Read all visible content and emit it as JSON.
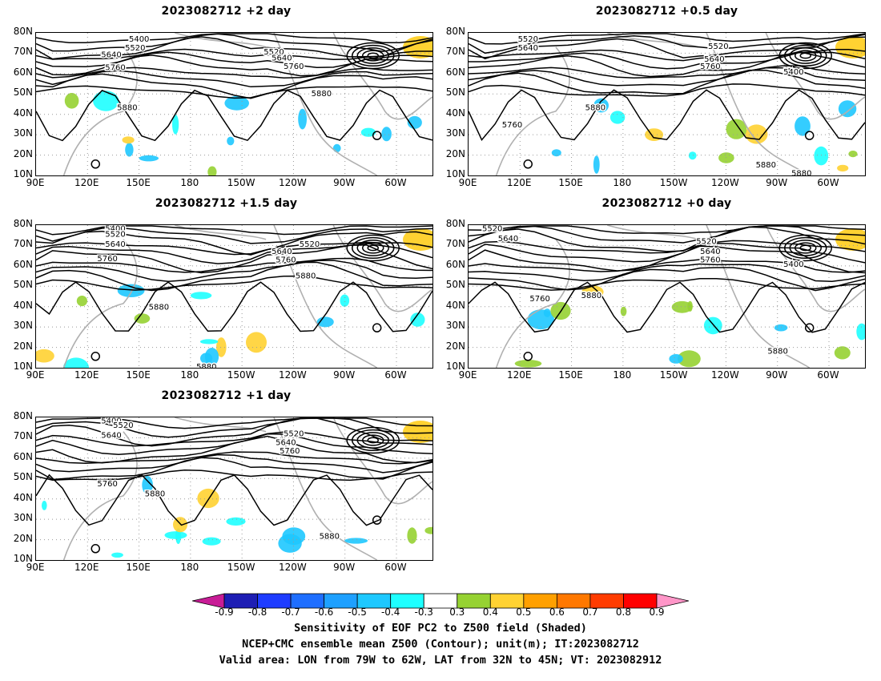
{
  "panels": [
    {
      "title": "2023082712 +2 day"
    },
    {
      "title": "2023082712 +0.5 day"
    },
    {
      "title": "2023082712 +1.5 day"
    },
    {
      "title": "2023082712 +0 day"
    },
    {
      "title": "2023082712 +1 day"
    }
  ],
  "lat_labels": [
    "80N",
    "70N",
    "60N",
    "50N",
    "40N",
    "30N",
    "20N",
    "10N"
  ],
  "lon_labels": [
    "90E",
    "120E",
    "150E",
    "180",
    "150W",
    "120W",
    "90W",
    "60W"
  ],
  "contour_labels": {
    "p0": [
      "5400",
      "5520",
      "5640",
      "5760",
      "5880",
      "5520",
      "5640",
      "5760",
      "5880"
    ],
    "p1": [
      "5520",
      "5640",
      "5520",
      "5640",
      "5760",
      "5400",
      "5880",
      "5760",
      "5880",
      "5880"
    ],
    "p2": [
      "5400",
      "5520",
      "5640",
      "5760",
      "5520",
      "5640",
      "5760",
      "5880",
      "5880",
      "5880"
    ],
    "p3": [
      "5520",
      "5640",
      "5520",
      "5640",
      "5760",
      "5400",
      "5880",
      "5760",
      "5880"
    ],
    "p4": [
      "5400",
      "5520",
      "5640",
      "5520",
      "5640",
      "5760",
      "5760",
      "5880",
      "5880"
    ]
  },
  "colorbar": {
    "ticks": [
      "-0.9",
      "-0.8",
      "-0.7",
      "-0.6",
      "-0.5",
      "-0.4",
      "-0.3",
      "0.3",
      "0.4",
      "0.5",
      "0.6",
      "0.7",
      "0.8",
      "0.9"
    ],
    "colors": [
      "#c81c96",
      "#1e1eb4",
      "#1e3cff",
      "#1e6eff",
      "#1ea0ff",
      "#1ec8ff",
      "#1effff",
      "#ffffff",
      "#96d232",
      "#ffd232",
      "#ffa000",
      "#ff7800",
      "#ff3c00",
      "#ff0000",
      "#ff96c8"
    ]
  },
  "footer": {
    "line1": "Sensitivity of EOF PC2 to Z500 field (Shaded)",
    "line2": "NCEP+CMC ensemble mean Z500 (Contour); unit(m); IT:2023082712",
    "line3": "Valid area: LON from 79W to 62W, LAT from 32N to 45N; VT: 2023082912"
  }
}
